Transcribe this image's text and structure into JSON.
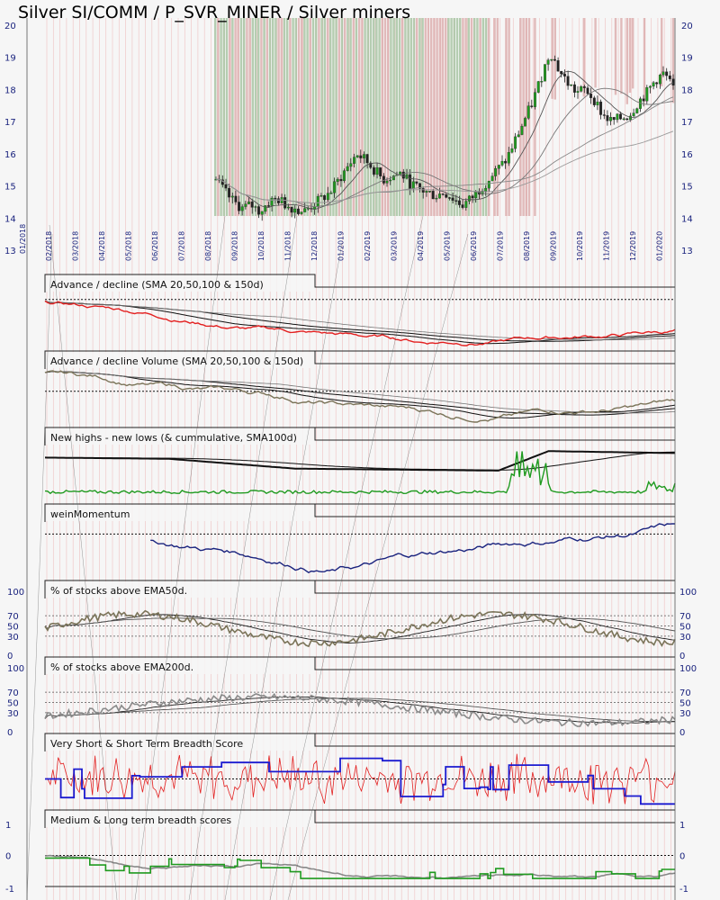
{
  "title": "Silver SI/COMM / P_SVR_MINER / Silver miners",
  "chart_data": {
    "type": "line",
    "x_ticks": [
      "02/2018",
      "03/2018",
      "04/2018",
      "05/2018",
      "06/2018",
      "07/2018",
      "08/2018",
      "09/2018",
      "10/2018",
      "11/2018",
      "12/2018",
      "01/2019",
      "02/2019",
      "03/2019",
      "04/2019",
      "05/2019",
      "06/2019",
      "07/2019",
      "08/2019",
      "09/2019",
      "10/2019",
      "11/2019",
      "12/2019",
      "01/2020"
    ],
    "price_panel": {
      "y_ticks": [
        "20",
        "19",
        "18",
        "17",
        "16",
        "15",
        "14",
        "13"
      ],
      "ylim": [
        13,
        20
      ],
      "candles_close": [
        15.2,
        14.8,
        14.5,
        14.3,
        14.4,
        14.2,
        14.5,
        14.6,
        14.4,
        14.3,
        14.2,
        14.4,
        14.6,
        14.8,
        15.2,
        15.6,
        16.0,
        15.8,
        15.5,
        15.2,
        15.3,
        15.4,
        15.1,
        14.9,
        14.8,
        14.7,
        14.8,
        14.6,
        14.4,
        14.6,
        14.9,
        15.2,
        15.5,
        15.8,
        16.4,
        17.0,
        17.6,
        18.4,
        19.2,
        18.6,
        18.2,
        17.9,
        18.0,
        17.7,
        17.2,
        17.0,
        17.1,
        17.2,
        17.6,
        17.9,
        18.3,
        18.5,
        18.0
      ]
    },
    "panels": [
      {
        "title": "Advance / decline (SMA 20,50,100 & 150d)",
        "series_color": "#e32020"
      },
      {
        "title": "Advance / decline Volume (SMA 20,50,100 & 150d)",
        "series_color": "#7a7358"
      },
      {
        "title": "New highs - new lows (& cummulative, SMA100d)",
        "series_color": "#1f9a1f"
      },
      {
        "title": "weinMomentum",
        "series_color": "#1a237e"
      },
      {
        "title": "% of stocks above EMA50d.",
        "series_color": "#7a7358",
        "y_ticks": [
          "100",
          "70",
          "50",
          "30",
          "0"
        ]
      },
      {
        "title": "% of stocks above EMA200d.",
        "series_color": "#8a8a8a",
        "y_ticks": [
          "100",
          "70",
          "50",
          "30",
          "0"
        ]
      },
      {
        "title": "Very Short & Short Term Breadth Score",
        "series_color": "#1a1ad0"
      },
      {
        "title": "Medium & Long term breadth scores",
        "series_color": "#1f9a1f",
        "y_ticks": [
          "1",
          "0",
          "-1"
        ]
      }
    ]
  }
}
